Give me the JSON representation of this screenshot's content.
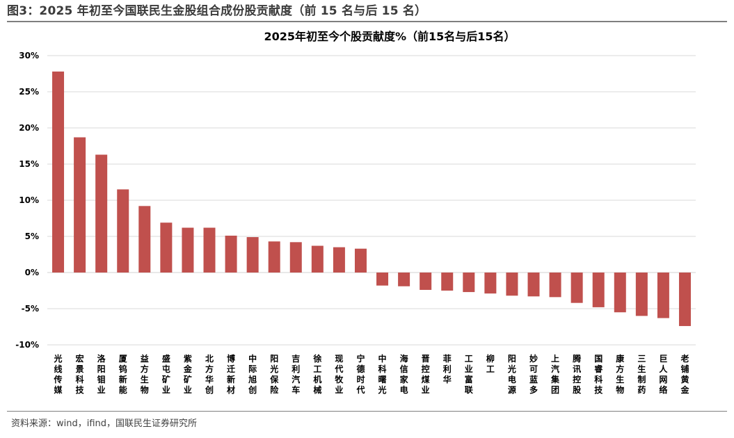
{
  "figure_title": "图3：2025 年初至今国联民生金股组合成份股贡献度（前 15 名与后 15 名）",
  "source": "资料来源：wind，ifind，国联民生证券研究所",
  "colors": {
    "bar": "#c0504d",
    "grid": "#d9d9d9",
    "axis": "#d9d9d9"
  },
  "chart_data": {
    "type": "bar",
    "title": "2025年初至今个股贡献度%（前15名与后15名）",
    "xlabel": "",
    "ylabel": "",
    "ylim": [
      -10,
      30
    ],
    "yticks": [
      -10,
      -5,
      0,
      5,
      10,
      15,
      20,
      25,
      30
    ],
    "ytick_labels": [
      "-10%",
      "-5%",
      "0%",
      "5%",
      "10%",
      "15%",
      "20%",
      "25%",
      "30%"
    ],
    "grid": true,
    "legend": "none",
    "categories": [
      "光线传媒",
      "宏景科技",
      "洛阳钼业",
      "厦钨新能",
      "益方生物",
      "盛屯矿业",
      "紫金矿业",
      "北方华创",
      "博迁新材",
      "中际旭创",
      "阳光保险",
      "吉利汽车",
      "徐工机械",
      "现代牧业",
      "宁德时代",
      "中科曙光",
      "海信家电",
      "晋控煤业",
      "菲利华",
      "工业富联",
      "柳工",
      "阳光电源",
      "妙可蓝多",
      "上汽集团",
      "腾讯控股",
      "国睿科技",
      "康方生物",
      "三生制药",
      "巨人网络",
      "老铺黄金"
    ],
    "values": [
      27.8,
      18.7,
      16.3,
      11.5,
      9.2,
      6.9,
      6.2,
      6.2,
      5.1,
      4.9,
      4.3,
      4.2,
      3.7,
      3.5,
      3.3,
      -1.8,
      -1.9,
      -2.4,
      -2.5,
      -2.7,
      -2.9,
      -3.2,
      -3.3,
      -3.4,
      -4.2,
      -4.8,
      -5.5,
      -6.0,
      -6.3,
      -7.4
    ]
  }
}
